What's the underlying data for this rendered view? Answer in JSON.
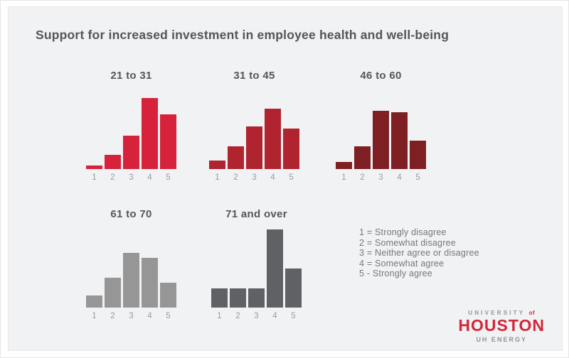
{
  "page": {
    "title": "Support for increased investment in employee health and well-being"
  },
  "chart_data": {
    "type": "bar",
    "title": "Support for increased investment in employee health and well-being",
    "categories": [
      "1",
      "2",
      "3",
      "4",
      "5"
    ],
    "xlabel": "",
    "ylabel": "",
    "ylim": [
      0,
      45
    ],
    "grid": false,
    "note": "Small-multiple histograms by age group; y-axis unlabeled, values estimated as % of respondents",
    "series": [
      {
        "name": "21 to 31",
        "color": "#d6223b",
        "values": [
          2,
          8,
          19,
          40,
          31
        ]
      },
      {
        "name": "31 to 45",
        "color": "#b0242f",
        "values": [
          5,
          13,
          24,
          34,
          23
        ]
      },
      {
        "name": "46 to 60",
        "color": "#7e2023",
        "values": [
          4,
          13,
          33,
          32,
          16
        ]
      },
      {
        "name": "61 to 70",
        "color": "#969696",
        "values": [
          7,
          17,
          31,
          28,
          14
        ]
      },
      {
        "name": "71 and over",
        "color": "#5f6165",
        "values": [
          11,
          11,
          11,
          44,
          22
        ]
      }
    ],
    "legend": [
      "1 = Strongly disagree",
      "2 = Somewhat disagree",
      "3 = Neither agree or disagree",
      "4 = Somewhat agree",
      "5 - Strongly agree"
    ],
    "legend_position": "right of bottom row"
  },
  "logo": {
    "university": "UNIVERSITY",
    "of": "of",
    "houston": "HOUSTON",
    "energy": "UH ENERGY",
    "red": "#d32638",
    "gray": "#909394"
  }
}
